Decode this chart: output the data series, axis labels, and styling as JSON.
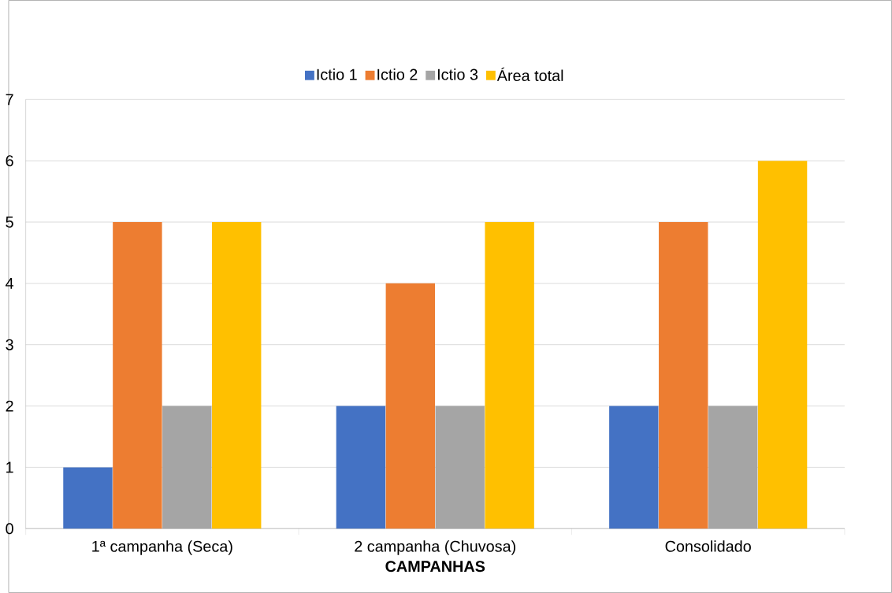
{
  "chart_data": {
    "type": "bar",
    "xlabel": "CAMPANHAS",
    "categories": [
      "1ª campanha (Seca)",
      "2 campanha (Chuvosa)",
      "Consolidado"
    ],
    "series": [
      {
        "name": "Ictio 1",
        "color": "#4472c4",
        "values": [
          1,
          2,
          2
        ]
      },
      {
        "name": "Ictio 2",
        "color": "#ed7d31",
        "values": [
          5,
          4,
          5
        ]
      },
      {
        "name": "Ictio 3",
        "color": "#a5a5a5",
        "values": [
          2,
          2,
          2
        ]
      },
      {
        "name": "Área total",
        "color": "#ffc000",
        "values": [
          5,
          5,
          6
        ]
      }
    ],
    "ylim": [
      0,
      7
    ],
    "yticks": [
      0,
      1,
      2,
      3,
      4,
      5,
      6,
      7
    ],
    "grid": "y",
    "legend": "top"
  }
}
